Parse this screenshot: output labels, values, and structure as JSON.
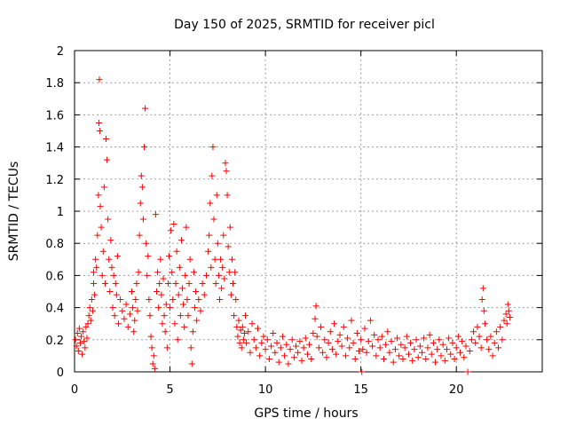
{
  "chart_data": {
    "type": "scatter",
    "title": "Day 150 of 2025, SRMTID for receiver picl",
    "xlabel": "GPS time / hours",
    "ylabel": "SRMTID / TECUs",
    "xlim": [
      0,
      24.5
    ],
    "ylim": [
      0,
      2
    ],
    "x_ticks": [
      0,
      5,
      10,
      15,
      20
    ],
    "x_tick_labels": [
      "0",
      "5",
      "10",
      "15",
      "20"
    ],
    "y_ticks": [
      0,
      0.2,
      0.4,
      0.6,
      0.8,
      1.0,
      1.2,
      1.4,
      1.6,
      1.8,
      2.0
    ],
    "y_tick_labels": [
      "0",
      "0.2",
      "0.4",
      "0.6",
      "0.8",
      "1",
      "1.2",
      "1.4",
      "1.6",
      "1.8",
      "2"
    ],
    "grid": true,
    "marker": "plus",
    "series": [
      {
        "name": "SRMTID",
        "color": "#ff0000",
        "points": [
          [
            0.05,
            0.2
          ],
          [
            0.1,
            0.16
          ],
          [
            0.15,
            0.24
          ],
          [
            0.2,
            0.13
          ],
          [
            0.25,
            0.27
          ],
          [
            0.3,
            0.18
          ],
          [
            0.35,
            0.22
          ],
          [
            0.4,
            0.11
          ],
          [
            0.45,
            0.25
          ],
          [
            0.5,
            0.19
          ],
          [
            0.55,
            0.15
          ],
          [
            0.6,
            0.28
          ],
          [
            0.65,
            0.21
          ],
          [
            0.7,
            0.3
          ],
          [
            0.75,
            0.35
          ],
          [
            0.8,
            0.4
          ],
          [
            0.85,
            0.32
          ],
          [
            0.9,
            0.45
          ],
          [
            0.95,
            0.38
          ],
          [
            1.0,
            0.55
          ],
          [
            1.0,
            0.62
          ],
          [
            1.05,
            0.48
          ],
          [
            1.1,
            0.7
          ],
          [
            1.15,
            0.65
          ],
          [
            1.2,
            0.85
          ],
          [
            1.25,
            1.1
          ],
          [
            1.28,
            1.55
          ],
          [
            1.3,
            1.82
          ],
          [
            1.32,
            1.5
          ],
          [
            1.35,
            1.03
          ],
          [
            1.4,
            0.9
          ],
          [
            1.45,
            0.6
          ],
          [
            1.5,
            0.75
          ],
          [
            1.55,
            1.15
          ],
          [
            1.6,
            0.55
          ],
          [
            1.65,
            1.45
          ],
          [
            1.7,
            1.32
          ],
          [
            1.75,
            0.95
          ],
          [
            1.8,
            0.7
          ],
          [
            1.85,
            0.5
          ],
          [
            1.9,
            0.82
          ],
          [
            1.95,
            0.65
          ],
          [
            2.0,
            0.4
          ],
          [
            2.05,
            0.6
          ],
          [
            2.1,
            0.35
          ],
          [
            2.15,
            0.55
          ],
          [
            2.2,
            0.48
          ],
          [
            2.25,
            0.72
          ],
          [
            2.3,
            0.3
          ],
          [
            2.4,
            0.45
          ],
          [
            2.5,
            0.38
          ],
          [
            2.6,
            0.33
          ],
          [
            2.7,
            0.42
          ],
          [
            2.8,
            0.28
          ],
          [
            2.9,
            0.36
          ],
          [
            3.0,
            0.5
          ],
          [
            3.05,
            0.4
          ],
          [
            3.1,
            0.25
          ],
          [
            3.15,
            0.32
          ],
          [
            3.2,
            0.45
          ],
          [
            3.25,
            0.55
          ],
          [
            3.3,
            0.38
          ],
          [
            3.35,
            0.62
          ],
          [
            3.4,
            0.85
          ],
          [
            3.45,
            1.05
          ],
          [
            3.5,
            1.22
          ],
          [
            3.55,
            1.15
          ],
          [
            3.6,
            0.95
          ],
          [
            3.65,
            1.4
          ],
          [
            3.7,
            1.64
          ],
          [
            3.75,
            0.8
          ],
          [
            3.8,
            0.6
          ],
          [
            3.85,
            0.72
          ],
          [
            3.9,
            0.45
          ],
          [
            3.95,
            0.35
          ],
          [
            4.0,
            0.22
          ],
          [
            4.05,
            0.15
          ],
          [
            4.1,
            0.05
          ],
          [
            4.15,
            0.1
          ],
          [
            4.2,
            0.02
          ],
          [
            4.25,
            0.98
          ],
          [
            4.3,
            0.5
          ],
          [
            4.35,
            0.62
          ],
          [
            4.4,
            0.4
          ],
          [
            4.45,
            0.55
          ],
          [
            4.5,
            0.7
          ],
          [
            4.55,
            0.48
          ],
          [
            4.6,
            0.3
          ],
          [
            4.65,
            0.58
          ],
          [
            4.7,
            0.35
          ],
          [
            4.75,
            0.25
          ],
          [
            4.8,
            0.42
          ],
          [
            4.85,
            0.15
          ],
          [
            4.9,
            0.55
          ],
          [
            4.95,
            0.72
          ],
          [
            5.0,
            0.4
          ],
          [
            5.05,
            0.88
          ],
          [
            5.1,
            0.62
          ],
          [
            5.15,
            0.45
          ],
          [
            5.2,
            0.92
          ],
          [
            5.25,
            0.3
          ],
          [
            5.3,
            0.55
          ],
          [
            5.35,
            0.75
          ],
          [
            5.4,
            0.2
          ],
          [
            5.45,
            0.48
          ],
          [
            5.5,
            0.65
          ],
          [
            5.55,
            0.35
          ],
          [
            5.6,
            0.82
          ],
          [
            5.65,
            0.52
          ],
          [
            5.7,
            0.42
          ],
          [
            5.75,
            0.28
          ],
          [
            5.8,
            0.6
          ],
          [
            5.85,
            0.9
          ],
          [
            5.9,
            0.45
          ],
          [
            5.95,
            0.35
          ],
          [
            6.0,
            0.55
          ],
          [
            6.05,
            0.7
          ],
          [
            6.1,
            0.15
          ],
          [
            6.15,
            0.05
          ],
          [
            6.2,
            0.25
          ],
          [
            6.25,
            0.62
          ],
          [
            6.3,
            0.4
          ],
          [
            6.35,
            0.5
          ],
          [
            6.4,
            0.32
          ],
          [
            6.5,
            0.45
          ],
          [
            6.6,
            0.38
          ],
          [
            6.7,
            0.55
          ],
          [
            6.8,
            0.48
          ],
          [
            6.9,
            0.6
          ],
          [
            7.0,
            0.75
          ],
          [
            7.05,
            0.85
          ],
          [
            7.1,
            1.05
          ],
          [
            7.15,
            0.65
          ],
          [
            7.2,
            1.22
          ],
          [
            7.25,
            1.4
          ],
          [
            7.3,
            0.95
          ],
          [
            7.35,
            0.7
          ],
          [
            7.4,
            0.55
          ],
          [
            7.45,
            1.1
          ],
          [
            7.5,
            0.8
          ],
          [
            7.55,
            0.6
          ],
          [
            7.6,
            0.45
          ],
          [
            7.65,
            0.7
          ],
          [
            7.7,
            0.52
          ],
          [
            7.75,
            0.65
          ],
          [
            7.8,
            0.85
          ],
          [
            7.85,
            0.58
          ],
          [
            7.9,
            1.3
          ],
          [
            7.95,
            1.25
          ],
          [
            8.0,
            1.1
          ],
          [
            8.05,
            0.78
          ],
          [
            8.1,
            0.62
          ],
          [
            8.15,
            0.9
          ],
          [
            8.2,
            0.48
          ],
          [
            8.25,
            0.7
          ],
          [
            8.3,
            0.55
          ],
          [
            8.35,
            0.35
          ],
          [
            8.4,
            0.62
          ],
          [
            8.45,
            0.45
          ],
          [
            8.5,
            0.28
          ],
          [
            8.55,
            0.22
          ],
          [
            8.6,
            0.32
          ],
          [
            8.65,
            0.18
          ],
          [
            8.7,
            0.26
          ],
          [
            8.75,
            0.15
          ],
          [
            8.8,
            0.28
          ],
          [
            8.85,
            0.2
          ],
          [
            8.9,
            0.24
          ],
          [
            8.95,
            0.35
          ],
          [
            9.0,
            0.18
          ],
          [
            9.1,
            0.25
          ],
          [
            9.2,
            0.12
          ],
          [
            9.3,
            0.3
          ],
          [
            9.4,
            0.2
          ],
          [
            9.5,
            0.15
          ],
          [
            9.6,
            0.27
          ],
          [
            9.7,
            0.1
          ],
          [
            9.8,
            0.18
          ],
          [
            9.9,
            0.22
          ],
          [
            10.0,
            0.14
          ],
          [
            10.1,
            0.2
          ],
          [
            10.2,
            0.08
          ],
          [
            10.3,
            0.16
          ],
          [
            10.4,
            0.24
          ],
          [
            10.5,
            0.12
          ],
          [
            10.6,
            0.18
          ],
          [
            10.7,
            0.06
          ],
          [
            10.8,
            0.15
          ],
          [
            10.9,
            0.22
          ],
          [
            11.0,
            0.1
          ],
          [
            11.1,
            0.17
          ],
          [
            11.2,
            0.05
          ],
          [
            11.3,
            0.14
          ],
          [
            11.4,
            0.2
          ],
          [
            11.5,
            0.09
          ],
          [
            11.6,
            0.16
          ],
          [
            11.7,
            0.12
          ],
          [
            11.8,
            0.19
          ],
          [
            11.9,
            0.07
          ],
          [
            12.0,
            0.15
          ],
          [
            12.1,
            0.21
          ],
          [
            12.2,
            0.11
          ],
          [
            12.3,
            0.17
          ],
          [
            12.4,
            0.08
          ],
          [
            12.5,
            0.24
          ],
          [
            12.6,
            0.33
          ],
          [
            12.65,
            0.41
          ],
          [
            12.7,
            0.22
          ],
          [
            12.8,
            0.15
          ],
          [
            12.9,
            0.28
          ],
          [
            13.0,
            0.12
          ],
          [
            13.1,
            0.2
          ],
          [
            13.2,
            0.09
          ],
          [
            13.3,
            0.18
          ],
          [
            13.4,
            0.25
          ],
          [
            13.5,
            0.14
          ],
          [
            13.6,
            0.3
          ],
          [
            13.7,
            0.11
          ],
          [
            13.8,
            0.19
          ],
          [
            13.9,
            0.23
          ],
          [
            14.0,
            0.16
          ],
          [
            14.1,
            0.28
          ],
          [
            14.2,
            0.1
          ],
          [
            14.3,
            0.21
          ],
          [
            14.4,
            0.15
          ],
          [
            14.5,
            0.32
          ],
          [
            14.6,
            0.18
          ],
          [
            14.7,
            0.08
          ],
          [
            14.8,
            0.24
          ],
          [
            14.9,
            0.13
          ],
          [
            15.0,
            0.2
          ],
          [
            15.05,
            0.0
          ],
          [
            15.1,
            0.14
          ],
          [
            15.2,
            0.27
          ],
          [
            15.3,
            0.12
          ],
          [
            15.4,
            0.19
          ],
          [
            15.5,
            0.32
          ],
          [
            15.6,
            0.16
          ],
          [
            15.7,
            0.23
          ],
          [
            15.8,
            0.1
          ],
          [
            15.9,
            0.2
          ],
          [
            16.0,
            0.15
          ],
          [
            16.1,
            0.22
          ],
          [
            16.2,
            0.08
          ],
          [
            16.3,
            0.17
          ],
          [
            16.4,
            0.25
          ],
          [
            16.5,
            0.12
          ],
          [
            16.6,
            0.19
          ],
          [
            16.7,
            0.06
          ],
          [
            16.8,
            0.14
          ],
          [
            16.9,
            0.21
          ],
          [
            17.0,
            0.1
          ],
          [
            17.1,
            0.17
          ],
          [
            17.2,
            0.08
          ],
          [
            17.3,
            0.15
          ],
          [
            17.4,
            0.22
          ],
          [
            17.5,
            0.11
          ],
          [
            17.6,
            0.18
          ],
          [
            17.7,
            0.07
          ],
          [
            17.8,
            0.14
          ],
          [
            17.9,
            0.2
          ],
          [
            18.0,
            0.09
          ],
          [
            18.1,
            0.16
          ],
          [
            18.2,
            0.12
          ],
          [
            18.3,
            0.21
          ],
          [
            18.4,
            0.08
          ],
          [
            18.5,
            0.15
          ],
          [
            18.6,
            0.23
          ],
          [
            18.7,
            0.11
          ],
          [
            18.8,
            0.18
          ],
          [
            18.9,
            0.06
          ],
          [
            19.0,
            0.14
          ],
          [
            19.1,
            0.2
          ],
          [
            19.2,
            0.1
          ],
          [
            19.3,
            0.17
          ],
          [
            19.4,
            0.07
          ],
          [
            19.5,
            0.14
          ],
          [
            19.6,
            0.21
          ],
          [
            19.7,
            0.11
          ],
          [
            19.8,
            0.18
          ],
          [
            19.9,
            0.08
          ],
          [
            20.0,
            0.15
          ],
          [
            20.1,
            0.22
          ],
          [
            20.2,
            0.12
          ],
          [
            20.3,
            0.19
          ],
          [
            20.4,
            0.09
          ],
          [
            20.5,
            0.16
          ],
          [
            20.6,
            0.0
          ],
          [
            20.7,
            0.13
          ],
          [
            20.8,
            0.2
          ],
          [
            20.9,
            0.25
          ],
          [
            21.0,
            0.18
          ],
          [
            21.1,
            0.28
          ],
          [
            21.2,
            0.22
          ],
          [
            21.3,
            0.15
          ],
          [
            21.35,
            0.45
          ],
          [
            21.4,
            0.52
          ],
          [
            21.45,
            0.38
          ],
          [
            21.5,
            0.3
          ],
          [
            21.6,
            0.2
          ],
          [
            21.7,
            0.14
          ],
          [
            21.8,
            0.22
          ],
          [
            21.9,
            0.1
          ],
          [
            22.0,
            0.18
          ],
          [
            22.1,
            0.25
          ],
          [
            22.2,
            0.15
          ],
          [
            22.3,
            0.28
          ],
          [
            22.4,
            0.2
          ],
          [
            22.5,
            0.32
          ],
          [
            22.6,
            0.36
          ],
          [
            22.65,
            0.3
          ],
          [
            22.7,
            0.42
          ],
          [
            22.75,
            0.38
          ],
          [
            22.8,
            0.34
          ]
        ]
      }
    ]
  }
}
